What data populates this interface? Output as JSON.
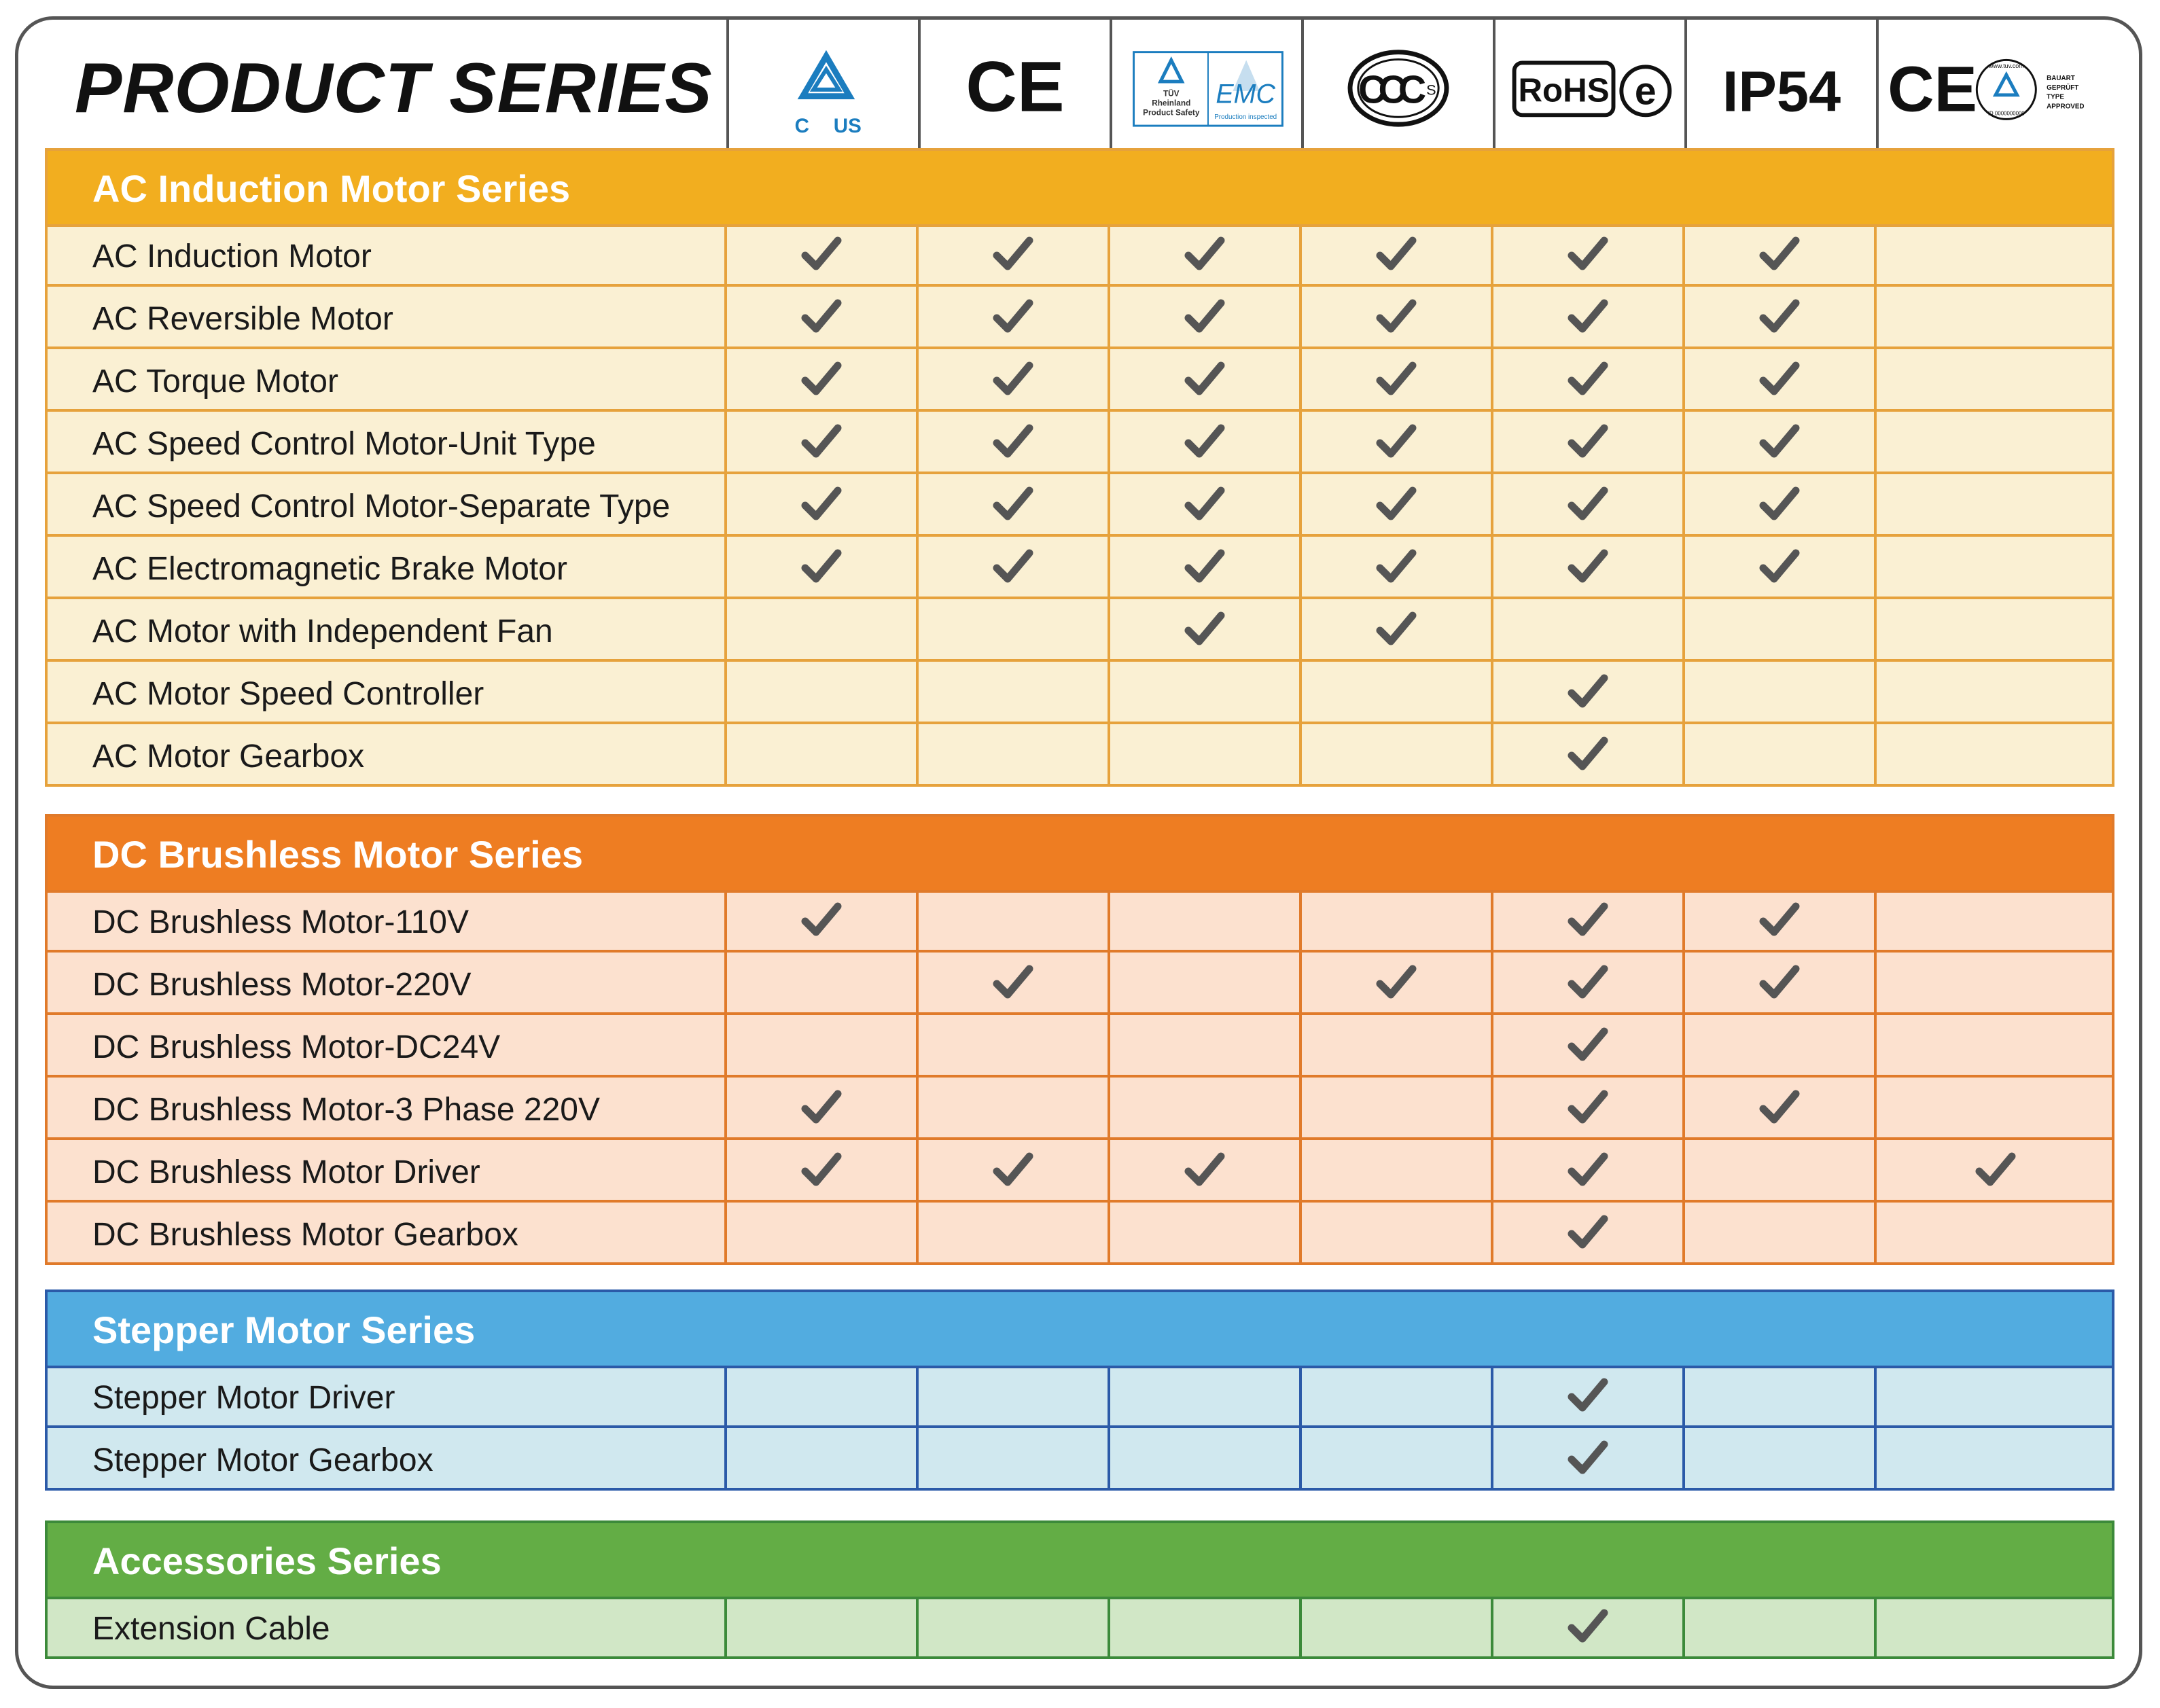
{
  "title": "PRODUCT SERIES",
  "certifications": [
    {
      "name": "cTUVus",
      "icon": "tuv-cus-mark-icon",
      "text": [
        "C",
        "US"
      ]
    },
    {
      "name": "CE",
      "icon": "ce-mark-icon",
      "text": [
        "CE"
      ]
    },
    {
      "name": "TUV Rheinland EMC",
      "icon": "tuv-emc-mark-icon",
      "text": [
        "TÜV",
        "Rheinland",
        "Product Safety",
        "EMC",
        "Production inspected"
      ]
    },
    {
      "name": "CCC",
      "icon": "ccc-mark-icon",
      "text": [
        "CCC",
        "S"
      ]
    },
    {
      "name": "RoHS",
      "icon": "rohs-mark-icon",
      "text": [
        "RoHS",
        "e"
      ]
    },
    {
      "name": "IP54",
      "icon": "ip54-mark-icon",
      "text": [
        "IP54"
      ]
    },
    {
      "name": "CE TUV Bauart",
      "icon": "ce-tuv-bauart-mark-icon",
      "text": [
        "CE",
        "www.tuv.com",
        "ID 0000000000",
        "BAUART",
        "GEPRÜFT",
        "TYPE",
        "APPROVED"
      ]
    }
  ],
  "sections": [
    {
      "title": "AC Induction Motor Series",
      "colors": {
        "header": "#F2AE1F",
        "row": "#FAF0D3",
        "border": "#E6A23C"
      },
      "rows": [
        {
          "label": "AC Induction Motor",
          "checks": [
            true,
            true,
            true,
            true,
            true,
            true,
            false
          ]
        },
        {
          "label": "AC Reversible Motor",
          "checks": [
            true,
            true,
            true,
            true,
            true,
            true,
            false
          ]
        },
        {
          "label": "AC Torque Motor",
          "checks": [
            true,
            true,
            true,
            true,
            true,
            true,
            false
          ]
        },
        {
          "label": "AC Speed Control Motor-Unit Type",
          "checks": [
            true,
            true,
            true,
            true,
            true,
            true,
            false
          ]
        },
        {
          "label": "AC Speed Control Motor-Separate Type",
          "checks": [
            true,
            true,
            true,
            true,
            true,
            true,
            false
          ]
        },
        {
          "label": "AC Electromagnetic Brake Motor",
          "checks": [
            true,
            true,
            true,
            true,
            true,
            true,
            false
          ]
        },
        {
          "label": "AC Motor with Independent Fan",
          "checks": [
            false,
            false,
            true,
            true,
            false,
            false,
            false
          ]
        },
        {
          "label": "AC Motor Speed Controller",
          "checks": [
            false,
            false,
            false,
            false,
            true,
            false,
            false
          ]
        },
        {
          "label": "AC Motor Gearbox",
          "checks": [
            false,
            false,
            false,
            false,
            true,
            false,
            false
          ]
        }
      ]
    },
    {
      "title": "DC Brushless Motor Series",
      "colors": {
        "header": "#EE7D22",
        "row": "#FCE1CF",
        "border": "#E07A2A"
      },
      "rows": [
        {
          "label": "DC Brushless Motor-110V",
          "checks": [
            true,
            false,
            false,
            false,
            true,
            true,
            false
          ]
        },
        {
          "label": "DC Brushless Motor-220V",
          "checks": [
            false,
            true,
            false,
            true,
            true,
            true,
            false
          ]
        },
        {
          "label": "DC Brushless Motor-DC24V",
          "checks": [
            false,
            false,
            false,
            false,
            true,
            false,
            false
          ]
        },
        {
          "label": "DC Brushless Motor-3 Phase 220V",
          "checks": [
            true,
            false,
            false,
            false,
            true,
            true,
            false
          ]
        },
        {
          "label": "DC Brushless Motor Driver",
          "checks": [
            true,
            true,
            true,
            false,
            true,
            false,
            true
          ]
        },
        {
          "label": "DC Brushless Motor Gearbox",
          "checks": [
            false,
            false,
            false,
            false,
            true,
            false,
            false
          ]
        }
      ]
    },
    {
      "title": "Stepper Motor Series",
      "colors": {
        "header": "#52ACE0",
        "row": "#D0E8EF",
        "border": "#2B5AA8"
      },
      "rows": [
        {
          "label": "Stepper Motor Driver",
          "checks": [
            false,
            false,
            false,
            false,
            true,
            false,
            false
          ]
        },
        {
          "label": "Stepper Motor Gearbox",
          "checks": [
            false,
            false,
            false,
            false,
            true,
            false,
            false
          ]
        }
      ]
    },
    {
      "title": "Accessories Series",
      "colors": {
        "header": "#63AD45",
        "row": "#D1E7C6",
        "border": "#3C8A3A"
      },
      "rows": [
        {
          "label": "Extension Cable",
          "checks": [
            false,
            false,
            false,
            false,
            true,
            false,
            false
          ]
        }
      ]
    }
  ],
  "check_color": "#555555"
}
